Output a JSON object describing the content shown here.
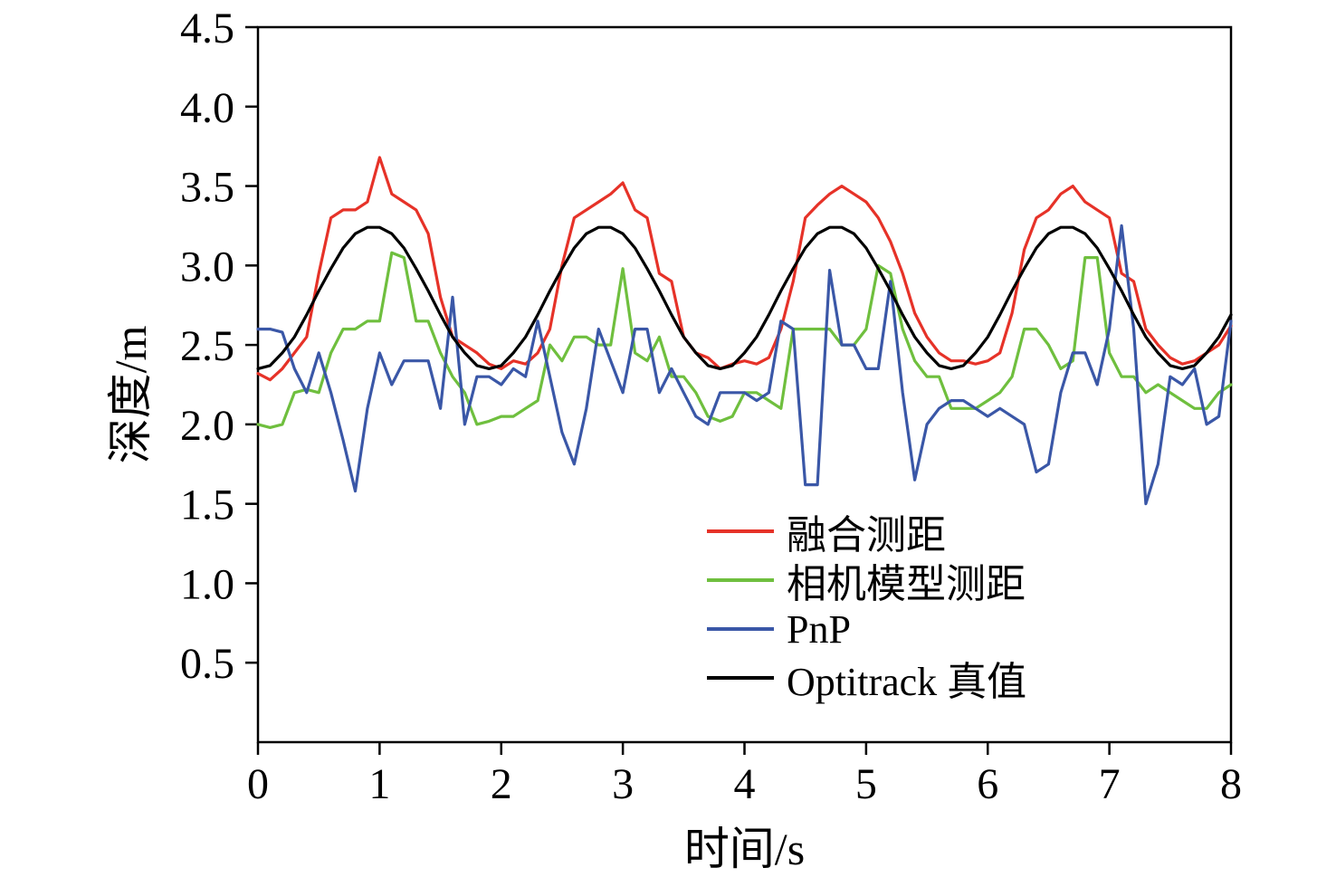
{
  "chart_data": {
    "type": "line",
    "title": "",
    "xlabel": "时间/s",
    "ylabel": "深度/m",
    "xlim": [
      0,
      8
    ],
    "ylim": [
      0,
      4.5
    ],
    "x_ticks": [
      0,
      1,
      2,
      3,
      4,
      5,
      6,
      7,
      8
    ],
    "y_ticks": [
      0.5,
      1.0,
      1.5,
      2.0,
      2.5,
      3.0,
      3.5,
      4.0,
      4.5
    ],
    "grid": false,
    "legend_position": "inside lower center-right",
    "x": [
      0,
      0.1,
      0.2,
      0.3,
      0.4,
      0.5,
      0.6,
      0.7,
      0.8,
      0.9,
      1,
      1.1,
      1.2,
      1.3,
      1.4,
      1.5,
      1.6,
      1.7,
      1.8,
      1.9,
      2,
      2.1,
      2.2,
      2.3,
      2.4,
      2.5,
      2.6,
      2.7,
      2.8,
      2.9,
      3,
      3.1,
      3.2,
      3.3,
      3.4,
      3.5,
      3.6,
      3.7,
      3.8,
      3.9,
      4,
      4.1,
      4.2,
      4.3,
      4.4,
      4.5,
      4.6,
      4.7,
      4.8,
      4.9,
      5,
      5.1,
      5.2,
      5.3,
      5.4,
      5.5,
      5.6,
      5.7,
      5.8,
      5.9,
      6,
      6.1,
      6.2,
      6.3,
      6.4,
      6.5,
      6.6,
      6.7,
      6.8,
      6.9,
      7,
      7.1,
      7.2,
      7.3,
      7.4,
      7.5,
      7.6,
      7.7,
      7.8,
      7.9,
      8
    ],
    "series": [
      {
        "name": "融合测距",
        "color": "#e63228",
        "values": [
          2.32,
          2.28,
          2.35,
          2.45,
          2.55,
          2.95,
          3.3,
          3.35,
          3.35,
          3.4,
          3.68,
          3.45,
          3.4,
          3.35,
          3.2,
          2.8,
          2.55,
          2.5,
          2.45,
          2.38,
          2.35,
          2.4,
          2.38,
          2.45,
          2.6,
          3.0,
          3.3,
          3.35,
          3.4,
          3.45,
          3.52,
          3.35,
          3.3,
          2.95,
          2.9,
          2.55,
          2.45,
          2.42,
          2.35,
          2.38,
          2.4,
          2.38,
          2.42,
          2.6,
          2.9,
          3.3,
          3.38,
          3.45,
          3.5,
          3.45,
          3.4,
          3.3,
          3.15,
          2.95,
          2.7,
          2.55,
          2.45,
          2.4,
          2.4,
          2.38,
          2.4,
          2.45,
          2.7,
          3.1,
          3.3,
          3.35,
          3.45,
          3.5,
          3.4,
          3.35,
          3.3,
          2.95,
          2.9,
          2.6,
          2.5,
          2.42,
          2.38,
          2.4,
          2.45,
          2.5,
          2.62
        ]
      },
      {
        "name": "相机模型测距",
        "color": "#6fbf3e",
        "values": [
          2.0,
          1.98,
          2.0,
          2.2,
          2.22,
          2.2,
          2.45,
          2.6,
          2.6,
          2.65,
          2.65,
          3.08,
          3.05,
          2.65,
          2.65,
          2.45,
          2.3,
          2.2,
          2.0,
          2.02,
          2.05,
          2.05,
          2.1,
          2.15,
          2.5,
          2.4,
          2.55,
          2.55,
          2.5,
          2.5,
          2.98,
          2.45,
          2.4,
          2.55,
          2.3,
          2.3,
          2.2,
          2.05,
          2.02,
          2.05,
          2.2,
          2.2,
          2.15,
          2.1,
          2.6,
          2.6,
          2.6,
          2.6,
          2.5,
          2.5,
          2.6,
          3.0,
          2.95,
          2.6,
          2.4,
          2.3,
          2.3,
          2.1,
          2.1,
          2.1,
          2.15,
          2.2,
          2.3,
          2.6,
          2.6,
          2.5,
          2.35,
          2.4,
          3.05,
          3.05,
          2.45,
          2.3,
          2.3,
          2.2,
          2.25,
          2.2,
          2.15,
          2.1,
          2.1,
          2.2,
          2.25
        ]
      },
      {
        "name": "PnP",
        "color": "#3a57a7",
        "values": [
          2.6,
          2.6,
          2.58,
          2.35,
          2.2,
          2.45,
          2.2,
          1.9,
          1.58,
          2.1,
          2.45,
          2.25,
          2.4,
          2.4,
          2.4,
          2.1,
          2.8,
          2.0,
          2.3,
          2.3,
          2.25,
          2.35,
          2.3,
          2.65,
          2.3,
          1.95,
          1.75,
          2.1,
          2.6,
          2.4,
          2.2,
          2.6,
          2.6,
          2.2,
          2.35,
          2.2,
          2.05,
          2.0,
          2.2,
          2.2,
          2.2,
          2.15,
          2.2,
          2.65,
          2.6,
          1.62,
          1.62,
          2.97,
          2.5,
          2.5,
          2.35,
          2.35,
          2.9,
          2.2,
          1.65,
          2.0,
          2.1,
          2.15,
          2.15,
          2.1,
          2.05,
          2.1,
          2.05,
          2.0,
          1.7,
          1.75,
          2.2,
          2.45,
          2.45,
          2.25,
          2.6,
          3.25,
          2.6,
          1.5,
          1.75,
          2.3,
          2.25,
          2.35,
          2.0,
          2.05,
          2.65
        ]
      },
      {
        "name": "Optitrack 真值",
        "color": "#000000",
        "values": [
          2.35,
          2.37,
          2.45,
          2.55,
          2.69,
          2.84,
          2.98,
          3.11,
          3.2,
          3.24,
          3.24,
          3.2,
          3.11,
          2.98,
          2.84,
          2.69,
          2.55,
          2.45,
          2.37,
          2.35,
          2.37,
          2.45,
          2.55,
          2.69,
          2.84,
          2.98,
          3.11,
          3.2,
          3.24,
          3.24,
          3.2,
          3.11,
          2.98,
          2.84,
          2.69,
          2.55,
          2.45,
          2.37,
          2.35,
          2.37,
          2.45,
          2.55,
          2.69,
          2.84,
          2.98,
          3.11,
          3.2,
          3.24,
          3.24,
          3.2,
          3.11,
          2.98,
          2.84,
          2.69,
          2.55,
          2.45,
          2.37,
          2.35,
          2.37,
          2.45,
          2.55,
          2.69,
          2.84,
          2.98,
          3.11,
          3.2,
          3.24,
          3.24,
          3.2,
          3.11,
          2.98,
          2.84,
          2.69,
          2.55,
          2.45,
          2.37,
          2.35,
          2.37,
          2.45,
          2.55,
          2.69
        ]
      }
    ]
  }
}
